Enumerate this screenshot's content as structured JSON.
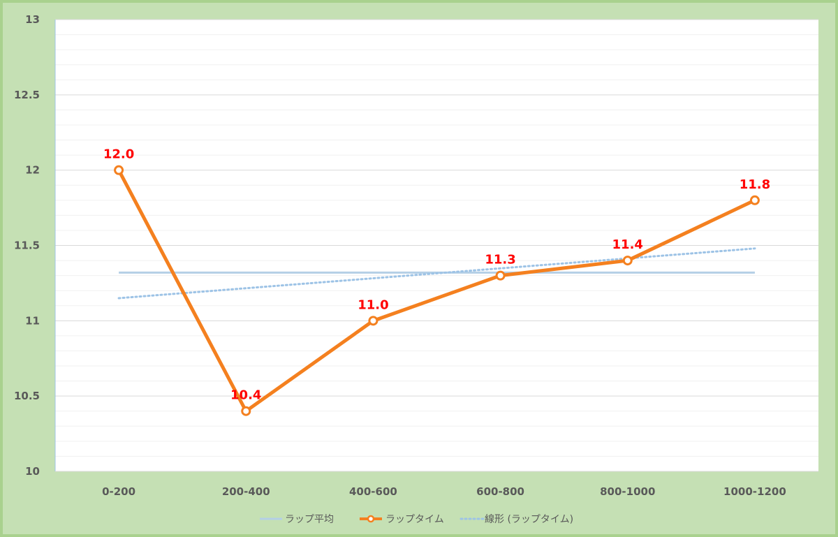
{
  "chart_data": {
    "type": "line",
    "categories": [
      "0-200",
      "200-400",
      "400-600",
      "600-800",
      "800-1000",
      "1000-1200"
    ],
    "ylim": [
      10,
      13
    ],
    "yticks": [
      "10",
      "10.5",
      "11",
      "11.5",
      "12",
      "12.5",
      "13"
    ],
    "grid": true,
    "series": [
      {
        "name": "ラップ平均",
        "values": [
          11.32,
          11.32,
          11.32,
          11.32,
          11.32,
          11.32
        ],
        "color": "#b4cfe6",
        "style": "solid"
      },
      {
        "name": "ラップタイム",
        "values": [
          12.0,
          10.4,
          11.0,
          11.3,
          11.4,
          11.8
        ],
        "labels": [
          "12.0",
          "10.4",
          "11.0",
          "11.3",
          "11.4",
          "11.8"
        ],
        "color": "#f4801f",
        "marker": "circle",
        "style": "solid"
      },
      {
        "name": "線形 (ラップタイム)",
        "values": [
          11.15,
          11.216,
          11.282,
          11.348,
          11.414,
          11.48
        ],
        "color": "#9dc3e6",
        "style": "dotted"
      }
    ],
    "legend_position": "bottom"
  }
}
